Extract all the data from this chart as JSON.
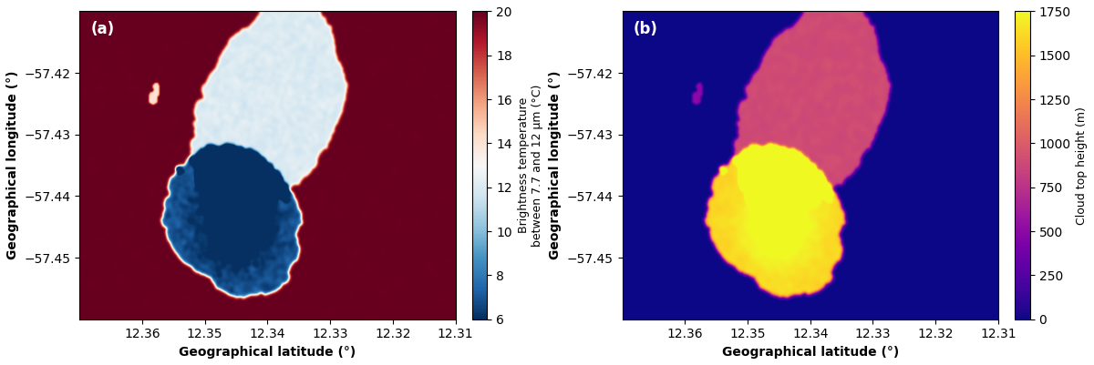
{
  "fig_width": 12.0,
  "fig_height": 4.01,
  "dpi": 100,
  "lat_min": 12.31,
  "lat_max": 12.37,
  "lon_min": -57.46,
  "lon_max": -57.41,
  "lat_ticks": [
    12.36,
    12.35,
    12.34,
    12.33,
    12.32,
    12.31
  ],
  "lon_ticks": [
    -57.42,
    -57.43,
    -57.44,
    -57.45
  ],
  "xlabel": "Geographical latitude (°)",
  "ylabel": "Geographical longitude (°)",
  "panel_a_label": "(a)",
  "panel_b_label": "(b)",
  "cbar_a_label": "Brightness temperature\nbetween 7.7 and 12 μm (°C)",
  "cbar_b_label": "Cloud top height (m)",
  "cbar_a_vmin": 6,
  "cbar_a_vmax": 20,
  "cbar_a_ticks": [
    6,
    8,
    10,
    12,
    14,
    16,
    18,
    20
  ],
  "cbar_b_vmin": 0,
  "cbar_b_vmax": 1750,
  "cbar_b_ticks": [
    0,
    250,
    500,
    750,
    1000,
    1250,
    1500,
    1750
  ],
  "cmap_a": "RdBu_r",
  "cmap_b": "plasma",
  "nx": 400,
  "ny": 300,
  "sea_surface_temp": 20.0,
  "cloud_min_temp": 6.0,
  "cloud_cold_temp": 7.5
}
